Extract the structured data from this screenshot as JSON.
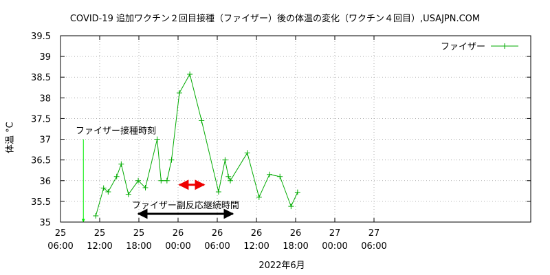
{
  "chart_data": {
    "type": "line",
    "title": "COVID-19 追加ワクチン２回目接種（ファイザー）後の体温の変化（ワクチン４回目）,USAJPN.COM",
    "ylabel": "体温 °C",
    "xlabel": "2022年6月",
    "ylim": [
      35,
      39.5
    ],
    "yticks": [
      "35",
      "35.5",
      "36",
      "36.5",
      "37",
      "37.5",
      "38",
      "38.5",
      "39",
      "39.5"
    ],
    "xlim_hours": [
      6,
      78
    ],
    "xticks": [
      {
        "day": "25",
        "time": "06:00",
        "h": 6
      },
      {
        "day": "25",
        "time": "12:00",
        "h": 12
      },
      {
        "day": "25",
        "time": "18:00",
        "h": 18
      },
      {
        "day": "26",
        "time": "00:00",
        "h": 24
      },
      {
        "day": "26",
        "time": "06:00",
        "h": 30
      },
      {
        "day": "26",
        "time": "12:00",
        "h": 36
      },
      {
        "day": "26",
        "time": "18:00",
        "h": 42
      },
      {
        "day": "27",
        "time": "00:00",
        "h": 48
      },
      {
        "day": "27",
        "time": "06:00",
        "h": 54
      }
    ],
    "legend": {
      "position": "top-right",
      "label": "ファイザー"
    },
    "series": [
      {
        "name": "ファイザー",
        "color": "#00aa00",
        "x_hours": [
          11.4,
          12.6,
          13.3,
          14.6,
          15.3,
          16.4,
          17.9,
          19.0,
          20.8,
          21.4,
          22.3,
          23.0,
          24.2,
          25.8,
          27.6,
          30.2,
          31.2,
          31.7,
          32.0,
          34.6,
          36.4,
          38.0,
          39.6,
          41.3,
          42.3
        ],
        "values": [
          35.15,
          35.82,
          35.73,
          36.1,
          36.4,
          35.67,
          36.0,
          35.83,
          37.0,
          36.0,
          36.0,
          36.5,
          38.12,
          38.57,
          37.45,
          35.73,
          36.5,
          36.1,
          36.0,
          36.67,
          35.6,
          36.15,
          36.1,
          35.38,
          35.72
        ]
      }
    ],
    "annotations": [
      {
        "text": "ファイザー接種時刻",
        "arrow_x_hours": 9.5,
        "arrow_from": 37.0,
        "arrow_to": 35.0,
        "color": "#00ee00"
      },
      {
        "text": "ファイザー副反応継続時間",
        "from_hours": 17.9,
        "to_hours": 32.4,
        "at": 35.2,
        "color": "#000000"
      },
      {
        "from_hours": 24.2,
        "to_hours": 28.0,
        "at": 35.9,
        "color": "#ee0000"
      }
    ]
  }
}
